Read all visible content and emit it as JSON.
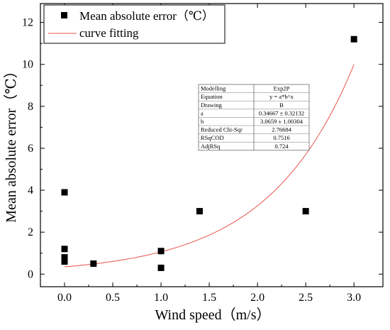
{
  "chart_data": {
    "type": "scatter",
    "xlabel": "Wind speed（m/s）",
    "ylabel": "Mean absolute error（℃）",
    "xlim": [
      -0.25,
      3.3
    ],
    "ylim": [
      -0.6,
      12.9
    ],
    "xticks": [
      0.0,
      0.5,
      1.0,
      1.5,
      2.0,
      2.5,
      3.0
    ],
    "xtick_labels": [
      "0.0",
      "0.5",
      "1.0",
      "1.5",
      "2.0",
      "2.5",
      "3.0"
    ],
    "yticks": [
      0,
      2,
      4,
      6,
      8,
      10,
      12
    ],
    "ytick_labels": [
      "0",
      "2",
      "4",
      "6",
      "8",
      "10",
      "12"
    ],
    "grid": false,
    "legend_position": "top-left",
    "series": [
      {
        "name": "Mean absolute error（℃）",
        "kind": "scatter",
        "marker": "square",
        "color": "#000000",
        "points": [
          {
            "x": 0.0,
            "y": 3.9
          },
          {
            "x": 0.0,
            "y": 1.2
          },
          {
            "x": 0.0,
            "y": 0.8
          },
          {
            "x": 0.0,
            "y": 0.6
          },
          {
            "x": 0.3,
            "y": 0.5
          },
          {
            "x": 1.0,
            "y": 1.1
          },
          {
            "x": 1.0,
            "y": 0.3
          },
          {
            "x": 1.4,
            "y": 3.0
          },
          {
            "x": 2.5,
            "y": 3.0
          },
          {
            "x": 3.0,
            "y": 11.2
          }
        ]
      },
      {
        "name": "curve fitting",
        "kind": "line",
        "color": "#e8534a",
        "model": {
          "a": 0.34667,
          "b": 3.0659
        },
        "x_range": [
          0.0,
          3.0
        ]
      }
    ],
    "stats_table": {
      "rows": [
        {
          "label": "Modelling",
          "value": "Exp2P"
        },
        {
          "label": "Equation",
          "value": "y = a*b^x"
        },
        {
          "label": "Drawing",
          "value": "B"
        },
        {
          "label": "a",
          "value": "0.34667 ± 0.32132"
        },
        {
          "label": "b",
          "value": "3.0659 ± 1.00304"
        },
        {
          "label": "Reduced Chi-Sqr",
          "value": "2.76684"
        },
        {
          "label": "RSqCOD",
          "value": "0.7516"
        },
        {
          "label": "AdjRSq",
          "value": "0.724"
        }
      ]
    }
  }
}
